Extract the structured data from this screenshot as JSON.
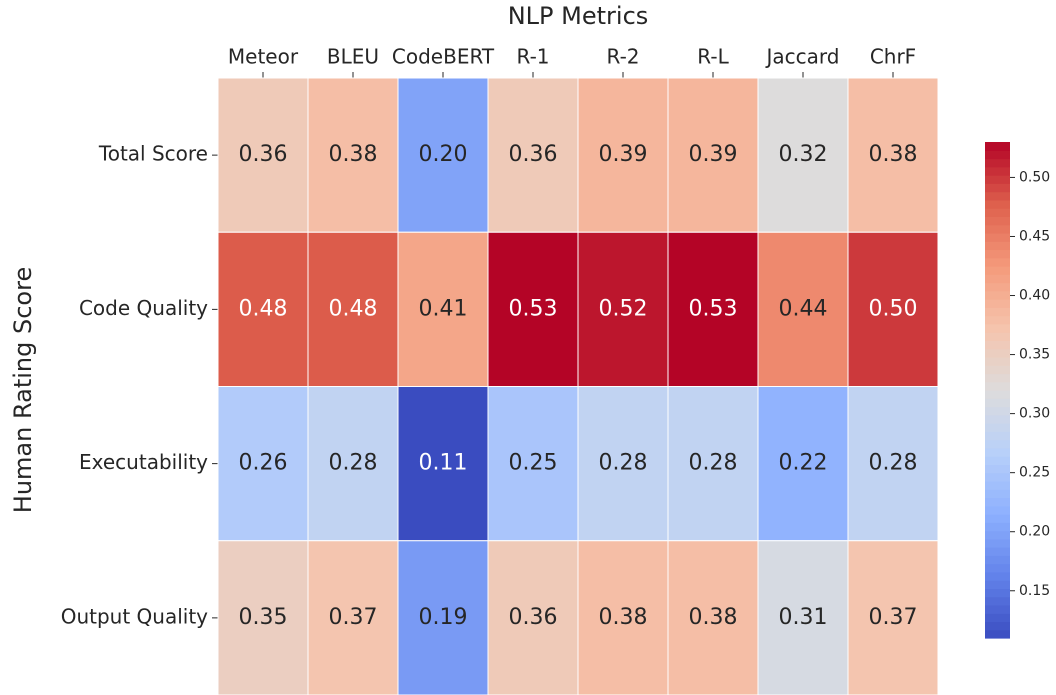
{
  "chart_data": {
    "type": "heatmap",
    "title": "NLP Metrics",
    "ylabel": "Human Rating Score",
    "x_categories": [
      "Meteor",
      "BLEU",
      "CodeBERT",
      "R-1",
      "R-2",
      "R-L",
      "Jaccard",
      "ChrF"
    ],
    "y_categories": [
      "Total Score",
      "Code Quality",
      "Executability",
      "Output Quality"
    ],
    "values": [
      [
        0.36,
        0.38,
        0.2,
        0.36,
        0.39,
        0.39,
        0.32,
        0.38
      ],
      [
        0.48,
        0.48,
        0.41,
        0.53,
        0.52,
        0.53,
        0.44,
        0.5
      ],
      [
        0.26,
        0.28,
        0.11,
        0.25,
        0.28,
        0.28,
        0.22,
        0.28
      ],
      [
        0.35,
        0.37,
        0.19,
        0.36,
        0.38,
        0.38,
        0.31,
        0.37
      ]
    ],
    "value_labels": [
      [
        "0.36",
        "0.38",
        "0.20",
        "0.36",
        "0.39",
        "0.39",
        "0.32",
        "0.38"
      ],
      [
        "0.48",
        "0.48",
        "0.41",
        "0.53",
        "0.52",
        "0.53",
        "0.44",
        "0.50"
      ],
      [
        "0.26",
        "0.28",
        "0.11",
        "0.25",
        "0.28",
        "0.28",
        "0.22",
        "0.28"
      ],
      [
        "0.35",
        "0.37",
        "0.19",
        "0.36",
        "0.38",
        "0.38",
        "0.31",
        "0.37"
      ]
    ],
    "clim": [
      0.11,
      0.53
    ],
    "cticks": [
      0.15,
      {
        "value": 0.2,
        "label": "0.20"
      },
      0.25,
      {
        "value": 0.3,
        "label": "0.30"
      },
      0.35,
      {
        "value": 0.4,
        "label": "0.40"
      },
      0.45,
      {
        "value": 0.5,
        "label": "0.50"
      }
    ],
    "cmap": "coolwarm",
    "cmap_colors": [
      "#3a4cc0",
      "#6282ea",
      "#8db0fe",
      "#b8d0f9",
      "#dddcdc",
      "#f5c4ad",
      "#f49a7b",
      "#de604d",
      "#b40426"
    ]
  }
}
